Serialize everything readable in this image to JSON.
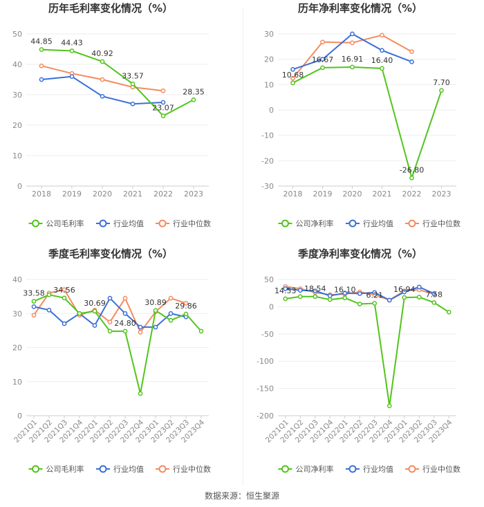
{
  "source": "数据来源：恒生聚源",
  "chart_data": [
    {
      "type": "line",
      "title": "历年毛利率变化情况（%）",
      "categories": [
        "2018",
        "2019",
        "2020",
        "2021",
        "2022",
        "2023"
      ],
      "ylim": [
        0,
        50
      ],
      "yticks": [
        0,
        10,
        20,
        30,
        40,
        50
      ],
      "series": [
        {
          "name": "公司毛利率",
          "color": "#52c41a",
          "values": [
            44.85,
            44.43,
            40.92,
            33.57,
            23.07,
            28.35
          ],
          "labels": [
            "44.85",
            "44.43",
            "40.92",
            "33.57",
            "23.07",
            "28.35"
          ]
        },
        {
          "name": "行业均值",
          "color": "#3a6fd8",
          "values": [
            35.0,
            36.0,
            29.5,
            27.0,
            27.5,
            null
          ]
        },
        {
          "name": "行业中位数",
          "color": "#f58a5f",
          "values": [
            39.5,
            37.0,
            35.0,
            32.5,
            31.3,
            null
          ]
        }
      ]
    },
    {
      "type": "line",
      "title": "历年净利率变化情况（%）",
      "categories": [
        "2018",
        "2019",
        "2020",
        "2021",
        "2022",
        "2023"
      ],
      "ylim": [
        -30,
        30
      ],
      "yticks": [
        -30,
        -20,
        -10,
        0,
        10,
        20,
        30
      ],
      "series": [
        {
          "name": "公司净利率",
          "color": "#52c41a",
          "values": [
            10.68,
            16.67,
            16.91,
            16.4,
            -26.8,
            7.7
          ],
          "labels": [
            "10.68",
            "16.67",
            "16.91",
            "16.40",
            "-26.80",
            "7.70"
          ]
        },
        {
          "name": "行业均值",
          "color": "#3a6fd8",
          "values": [
            16.0,
            20.0,
            30.0,
            23.5,
            19.0,
            null
          ]
        },
        {
          "name": "行业中位数",
          "color": "#f58a5f",
          "values": [
            12.5,
            26.8,
            26.5,
            29.5,
            23.0,
            null
          ]
        }
      ]
    },
    {
      "type": "line",
      "title": "季度毛利率变化情况（%）",
      "categories": [
        "2021Q1",
        "2021Q2",
        "2021Q3",
        "2021Q4",
        "2022Q1",
        "2022Q2",
        "2022Q3",
        "2022Q4",
        "2023Q1",
        "2023Q2",
        "2023Q3",
        "2023Q4"
      ],
      "ylim": [
        0,
        40
      ],
      "yticks": [
        0,
        10,
        20,
        30,
        40
      ],
      "series": [
        {
          "name": "公司毛利率",
          "color": "#52c41a",
          "values": [
            33.58,
            35.5,
            34.56,
            30.0,
            30.69,
            24.8,
            24.8,
            6.5,
            30.89,
            28.0,
            29.86,
            24.8
          ],
          "labels": [
            "33.58",
            "",
            "34.56",
            "",
            "30.69",
            "",
            "24.80",
            "",
            "30.89",
            "",
            "29.86",
            ""
          ]
        },
        {
          "name": "行业均值",
          "color": "#3a6fd8",
          "values": [
            32.0,
            31.0,
            27.0,
            30.0,
            26.5,
            34.5,
            30.0,
            26.0,
            26.0,
            30.0,
            29.0,
            null
          ]
        },
        {
          "name": "行业中位数",
          "color": "#f58a5f",
          "values": [
            29.5,
            36.0,
            37.0,
            29.5,
            31.0,
            27.5,
            34.5,
            24.5,
            30.5,
            34.5,
            33.0,
            null
          ]
        }
      ]
    },
    {
      "type": "line",
      "title": "季度净利率变化情况（%）",
      "categories": [
        "2021Q1",
        "2021Q2",
        "2021Q3",
        "2021Q4",
        "2022Q1",
        "2022Q2",
        "2022Q3",
        "2022Q4",
        "2023Q1",
        "2023Q2",
        "2023Q3",
        "2023Q4"
      ],
      "ylim": [
        -200,
        50
      ],
      "yticks": [
        -200,
        -150,
        -100,
        -50,
        0,
        50
      ],
      "series": [
        {
          "name": "公司净利率",
          "color": "#52c41a",
          "values": [
            14.53,
            18.5,
            18.54,
            13.0,
            16.1,
            5.0,
            6.21,
            -182.0,
            16.94,
            17.5,
            7.58,
            -10.0
          ],
          "labels": [
            "14.53",
            "",
            "18.54",
            "",
            "16.10",
            "",
            "6.21",
            "",
            "16.94",
            "",
            "7.58",
            ""
          ]
        },
        {
          "name": "行业均值",
          "color": "#3a6fd8",
          "values": [
            33.0,
            30.0,
            29.0,
            20.0,
            25.0,
            24.0,
            26.0,
            12.0,
            27.0,
            36.0,
            24.0,
            null
          ]
        },
        {
          "name": "行业中位数",
          "color": "#f58a5f",
          "values": [
            37.0,
            33.0,
            26.0,
            22.0,
            23.0,
            27.0,
            22.0,
            12.0,
            29.0,
            31.0,
            23.0,
            null
          ]
        }
      ]
    }
  ]
}
